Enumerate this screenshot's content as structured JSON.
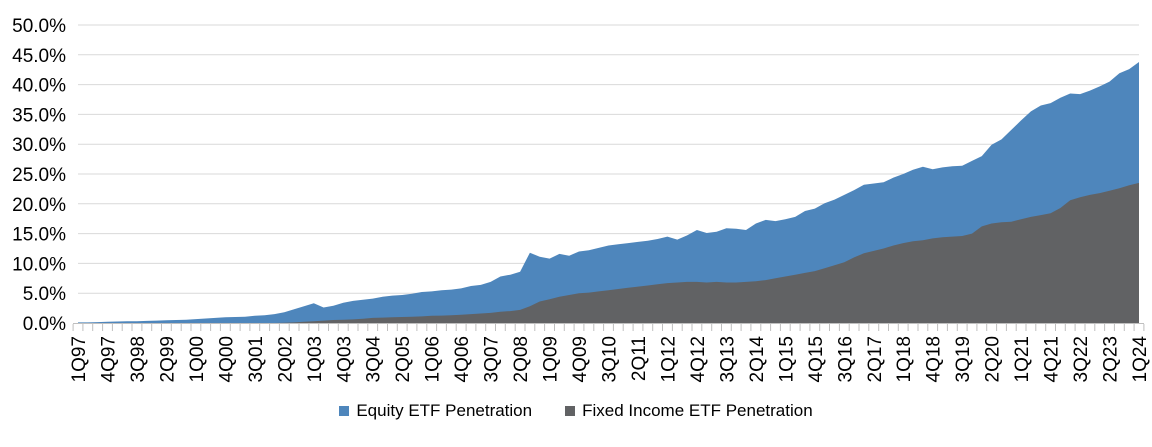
{
  "chart_data": {
    "type": "area",
    "title": "",
    "legend_position": "bottom",
    "grid": true,
    "x_axis": {
      "start": "1Q97",
      "end": "1Q24",
      "label_every_n_quarters": 3,
      "tick_labels": [
        "1Q97",
        "4Q97",
        "3Q98",
        "2Q99",
        "1Q00",
        "4Q00",
        "3Q01",
        "2Q02",
        "1Q03",
        "4Q03",
        "3Q04",
        "2Q05",
        "1Q06",
        "4Q06",
        "3Q07",
        "2Q08",
        "1Q09",
        "4Q09",
        "3Q10",
        "2Q11",
        "1Q12",
        "4Q12",
        "3Q13",
        "2Q14",
        "1Q15",
        "4Q15",
        "3Q16",
        "2Q17",
        "1Q18",
        "4Q18",
        "3Q19",
        "2Q20",
        "1Q21",
        "4Q21",
        "3Q22",
        "2Q23",
        "1Q24"
      ]
    },
    "y_axis": {
      "min": 0,
      "max": 50,
      "step": 5,
      "unit": "%",
      "tick_labels": [
        "0.0%",
        "5.0%",
        "10.0%",
        "15.0%",
        "20.0%",
        "25.0%",
        "30.0%",
        "35.0%",
        "40.0%",
        "45.0%",
        "50.0%"
      ]
    },
    "series": [
      {
        "name": "Equity ETF Penetration",
        "color": "#4E86BC",
        "values": [
          0.1,
          0.1,
          0.15,
          0.2,
          0.25,
          0.3,
          0.3,
          0.35,
          0.4,
          0.45,
          0.5,
          0.55,
          0.65,
          0.75,
          0.85,
          0.95,
          1.0,
          1.05,
          1.2,
          1.3,
          1.5,
          1.8,
          2.3,
          2.8,
          3.3,
          2.6,
          2.9,
          3.4,
          3.7,
          3.9,
          4.1,
          4.4,
          4.6,
          4.7,
          4.9,
          5.2,
          5.3,
          5.5,
          5.6,
          5.8,
          6.2,
          6.4,
          6.9,
          7.8,
          8.1,
          8.6,
          11.8,
          11.1,
          10.8,
          11.6,
          11.3,
          12.0,
          12.2,
          12.6,
          13.0,
          13.2,
          13.4,
          13.6,
          13.8,
          14.1,
          14.5,
          14.0,
          14.7,
          15.6,
          15.1,
          15.3,
          15.9,
          15.8,
          15.6,
          16.7,
          17.3,
          17.1,
          17.4,
          17.8,
          18.8,
          19.2,
          20.1,
          20.7,
          21.5,
          22.3,
          23.2,
          23.4,
          23.6,
          24.4,
          25.0,
          25.7,
          26.2,
          25.8,
          26.1,
          26.3,
          26.4,
          27.2,
          28.0,
          29.9,
          30.8,
          32.4,
          34.0,
          35.5,
          36.5,
          36.9,
          37.8,
          38.5,
          38.4,
          39.0,
          39.7,
          40.5,
          41.9,
          42.6,
          43.8
        ]
      },
      {
        "name": "Fixed Income ETF Penetration",
        "color": "#616264",
        "values": [
          0,
          0,
          0,
          0,
          0,
          0,
          0,
          0,
          0,
          0,
          0,
          0,
          0,
          0,
          0,
          0,
          0,
          0,
          0,
          0,
          0,
          0.05,
          0.1,
          0.2,
          0.3,
          0.4,
          0.5,
          0.55,
          0.6,
          0.7,
          0.85,
          0.9,
          0.95,
          1.0,
          1.05,
          1.1,
          1.2,
          1.25,
          1.3,
          1.4,
          1.5,
          1.6,
          1.7,
          1.9,
          2.0,
          2.2,
          2.8,
          3.6,
          4.0,
          4.4,
          4.7,
          5.0,
          5.1,
          5.3,
          5.5,
          5.7,
          5.9,
          6.1,
          6.3,
          6.5,
          6.7,
          6.8,
          6.9,
          6.9,
          6.8,
          6.9,
          6.8,
          6.8,
          6.9,
          7.0,
          7.2,
          7.5,
          7.8,
          8.1,
          8.4,
          8.7,
          9.2,
          9.7,
          10.2,
          11.0,
          11.7,
          12.1,
          12.5,
          13.0,
          13.4,
          13.7,
          13.9,
          14.2,
          14.4,
          14.5,
          14.6,
          15.0,
          16.2,
          16.7,
          16.9,
          17.0,
          17.4,
          17.8,
          18.1,
          18.4,
          19.3,
          20.6,
          21.1,
          21.5,
          21.8,
          22.2,
          22.6,
          23.1,
          23.5
        ]
      }
    ],
    "colors": {
      "gridline": "#D9D9D9",
      "axis": "#BFBFBF",
      "text": "#000000",
      "background": "#FFFFFF"
    }
  }
}
